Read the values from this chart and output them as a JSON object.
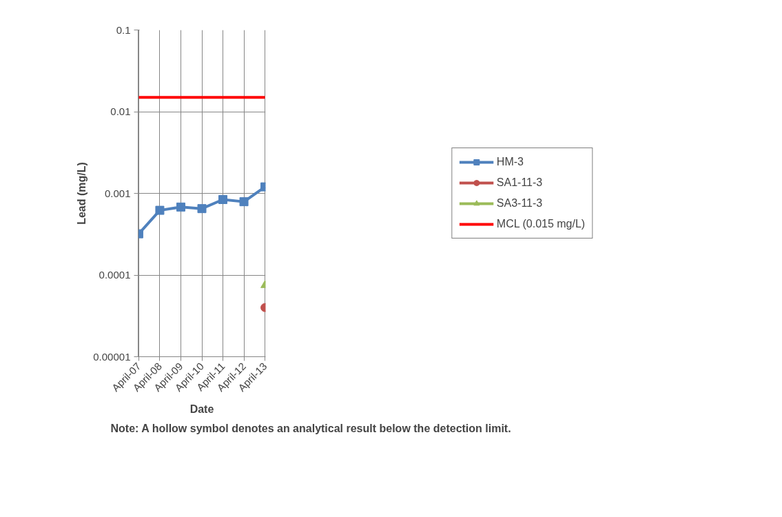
{
  "chart_data": {
    "type": "line",
    "xlabel": "Date",
    "ylabel": "Lead (mg/L)",
    "categories": [
      "April-07",
      "April-08",
      "April-09",
      "April-10",
      "April-11",
      "April-12",
      "April-13"
    ],
    "series": [
      {
        "name": "HM-3",
        "color": "#4f81bd",
        "marker": "square",
        "values": [
          0.00032,
          0.00062,
          0.00068,
          0.00065,
          0.00084,
          0.00079,
          0.0012
        ]
      },
      {
        "name": "SA1-11-3",
        "color": "#c0504d",
        "marker": "circle",
        "values": [
          null,
          null,
          null,
          null,
          null,
          null,
          4e-05
        ]
      },
      {
        "name": "SA3-11-3",
        "color": "#9bbb59",
        "marker": "triangle",
        "values": [
          null,
          null,
          null,
          null,
          null,
          null,
          7.5e-05
        ]
      },
      {
        "name": "MCL (0.015 mg/L)",
        "color": "#ff0000",
        "marker": "none",
        "values": [
          0.015,
          0.015,
          0.015,
          0.015,
          0.015,
          0.015,
          0.015
        ]
      }
    ],
    "log": "y",
    "ylim": [
      1e-05,
      0.1
    ],
    "yticks": [
      {
        "value": 1e-05,
        "label": "0.00001"
      },
      {
        "value": 0.0001,
        "label": "0.0001"
      },
      {
        "value": 0.001,
        "label": "0.001"
      },
      {
        "value": 0.01,
        "label": "0.01"
      },
      {
        "value": 0.1,
        "label": "0.1"
      }
    ],
    "grid": true,
    "legend": "right",
    "annotations": [
      "Note:  A hollow symbol denotes an analytical result below the detection limit."
    ]
  }
}
